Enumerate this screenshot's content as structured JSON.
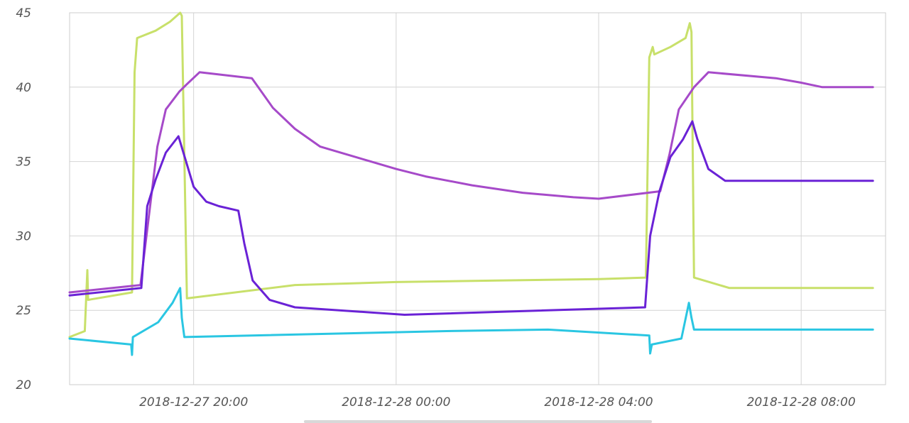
{
  "chart_data": {
    "type": "line",
    "xlabel": "",
    "ylabel": "",
    "ylim": [
      20,
      45
    ],
    "xlim": [
      "2018-12-27 17:33",
      "2018-12-28 09:40"
    ],
    "grid": true,
    "yticks": [
      20,
      25,
      30,
      35,
      40,
      45
    ],
    "xticks": [
      "2018-12-27 20:00",
      "2018-12-28 00:00",
      "2018-12-28 04:00",
      "2018-12-28 08:00"
    ],
    "series": [
      {
        "color": "#c8e06a",
        "points": [
          [
            "2018-12-27 17:33",
            23.2
          ],
          [
            "2018-12-27 17:51",
            23.6
          ],
          [
            "2018-12-27 17:54",
            27.7
          ],
          [
            "2018-12-27 17:55",
            25.7
          ],
          [
            "2018-12-27 18:47",
            26.2
          ],
          [
            "2018-12-27 18:50",
            41.0
          ],
          [
            "2018-12-27 18:53",
            43.3
          ],
          [
            "2018-12-27 19:15",
            43.8
          ],
          [
            "2018-12-27 19:32",
            44.4
          ],
          [
            "2018-12-27 19:44",
            45.0
          ],
          [
            "2018-12-27 19:46",
            44.8
          ],
          [
            "2018-12-27 19:52",
            25.8
          ],
          [
            "2018-12-27 22:00",
            26.7
          ],
          [
            "2018-12-28 00:00",
            26.9
          ],
          [
            "2018-12-28 02:00",
            27.0
          ],
          [
            "2018-12-28 04:00",
            27.1
          ],
          [
            "2018-12-28 04:56",
            27.2
          ],
          [
            "2018-12-28 05:00",
            42.0
          ],
          [
            "2018-12-28 05:04",
            42.7
          ],
          [
            "2018-12-28 05:06",
            42.2
          ],
          [
            "2018-12-28 05:25",
            42.7
          ],
          [
            "2018-12-28 05:43",
            43.3
          ],
          [
            "2018-12-28 05:48",
            44.3
          ],
          [
            "2018-12-28 05:50",
            43.7
          ],
          [
            "2018-12-28 05:53",
            27.2
          ],
          [
            "2018-12-28 06:35",
            26.5
          ],
          [
            "2018-12-28 08:00",
            26.5
          ],
          [
            "2018-12-28 09:25",
            26.5
          ]
        ]
      },
      {
        "color": "#a64ac9",
        "points": [
          [
            "2018-12-27 17:33",
            26.2
          ],
          [
            "2018-12-27 18:57",
            26.7
          ],
          [
            "2018-12-27 19:17",
            36.0
          ],
          [
            "2018-12-27 19:27",
            38.5
          ],
          [
            "2018-12-27 19:43",
            39.7
          ],
          [
            "2018-12-27 19:52",
            40.2
          ],
          [
            "2018-12-27 20:07",
            41.0
          ],
          [
            "2018-12-27 21:09",
            40.6
          ],
          [
            "2018-12-27 21:34",
            38.6
          ],
          [
            "2018-12-27 22:00",
            37.2
          ],
          [
            "2018-12-27 22:30",
            36.0
          ],
          [
            "2018-12-27 23:00",
            35.5
          ],
          [
            "2018-12-27 23:30",
            35.0
          ],
          [
            "2018-12-28 00:00",
            34.5
          ],
          [
            "2018-12-28 00:35",
            34.0
          ],
          [
            "2018-12-28 01:30",
            33.4
          ],
          [
            "2018-12-28 02:30",
            32.9
          ],
          [
            "2018-12-28 03:30",
            32.6
          ],
          [
            "2018-12-28 04:00",
            32.5
          ],
          [
            "2018-12-28 05:13",
            33.0
          ],
          [
            "2018-12-28 05:24",
            35.5
          ],
          [
            "2018-12-28 05:35",
            38.5
          ],
          [
            "2018-12-28 05:53",
            40.0
          ],
          [
            "2018-12-28 06:10",
            41.0
          ],
          [
            "2018-12-28 07:30",
            40.6
          ],
          [
            "2018-12-28 08:00",
            40.3
          ],
          [
            "2018-12-28 08:25",
            40.0
          ],
          [
            "2018-12-28 09:25",
            40.0
          ]
        ]
      },
      {
        "color": "#6a22d6",
        "points": [
          [
            "2018-12-27 17:33",
            26.0
          ],
          [
            "2018-12-27 18:58",
            26.5
          ],
          [
            "2018-12-27 19:05",
            32.0
          ],
          [
            "2018-12-27 19:15",
            33.8
          ],
          [
            "2018-12-27 19:27",
            35.6
          ],
          [
            "2018-12-27 19:42",
            36.7
          ],
          [
            "2018-12-27 19:51",
            35.0
          ],
          [
            "2018-12-27 20:00",
            33.3
          ],
          [
            "2018-12-27 20:15",
            32.3
          ],
          [
            "2018-12-27 20:30",
            32.0
          ],
          [
            "2018-12-27 20:53",
            31.7
          ],
          [
            "2018-12-27 21:00",
            29.5
          ],
          [
            "2018-12-27 21:10",
            27.0
          ],
          [
            "2018-12-27 21:30",
            25.7
          ],
          [
            "2018-12-27 22:00",
            25.2
          ],
          [
            "2018-12-28 00:10",
            24.7
          ],
          [
            "2018-12-28 04:55",
            25.2
          ],
          [
            "2018-12-28 05:01",
            30.0
          ],
          [
            "2018-12-28 05:12",
            33.0
          ],
          [
            "2018-12-28 05:25",
            35.3
          ],
          [
            "2018-12-28 05:40",
            36.5
          ],
          [
            "2018-12-28 05:51",
            37.7
          ],
          [
            "2018-12-28 05:57",
            36.5
          ],
          [
            "2018-12-28 06:10",
            34.5
          ],
          [
            "2018-12-28 06:30",
            33.7
          ],
          [
            "2018-12-28 08:00",
            33.7
          ],
          [
            "2018-12-28 09:25",
            33.7
          ]
        ]
      },
      {
        "color": "#2ac6e2",
        "points": [
          [
            "2018-12-27 17:33",
            23.1
          ],
          [
            "2018-12-27 18:46",
            22.7
          ],
          [
            "2018-12-27 18:47",
            22.0
          ],
          [
            "2018-12-27 18:48",
            23.2
          ],
          [
            "2018-12-27 19:18",
            24.2
          ],
          [
            "2018-12-27 19:35",
            25.5
          ],
          [
            "2018-12-27 19:44",
            26.5
          ],
          [
            "2018-12-27 19:46",
            24.5
          ],
          [
            "2018-12-27 19:49",
            23.2
          ],
          [
            "2018-12-28 01:00",
            23.6
          ],
          [
            "2018-12-28 03:00",
            23.7
          ],
          [
            "2018-12-28 05:00",
            23.3
          ],
          [
            "2018-12-28 05:01",
            22.1
          ],
          [
            "2018-12-28 05:03",
            22.7
          ],
          [
            "2018-12-28 05:38",
            23.1
          ],
          [
            "2018-12-28 05:47",
            25.5
          ],
          [
            "2018-12-28 05:50",
            24.5
          ],
          [
            "2018-12-28 05:53",
            23.7
          ],
          [
            "2018-12-28 08:00",
            23.7
          ],
          [
            "2018-12-28 09:25",
            23.7
          ]
        ]
      }
    ]
  }
}
